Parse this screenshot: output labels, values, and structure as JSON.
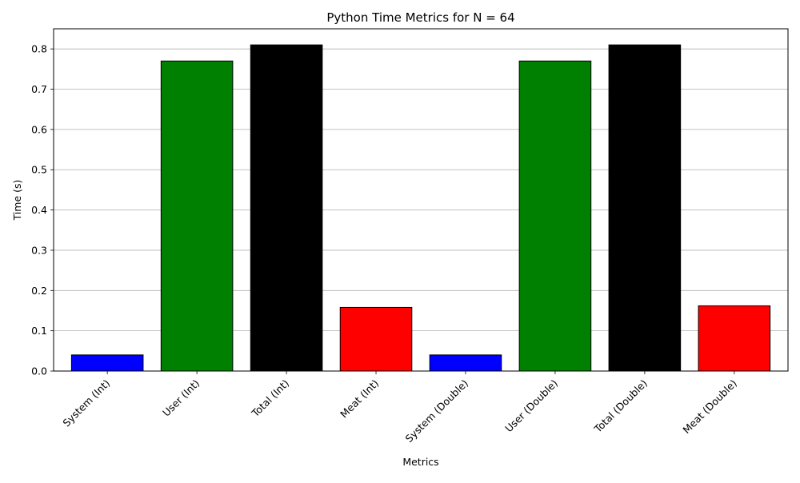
{
  "chart_data": {
    "type": "bar",
    "title": "Python Time Metrics for N = 64",
    "xlabel": "Metrics",
    "ylabel": "Time (s)",
    "categories": [
      "System (Int)",
      "User (Int)",
      "Total (Int)",
      "Meat (Int)",
      "System (Double)",
      "User (Double)",
      "Total (Double)",
      "Meat (Double)"
    ],
    "values": [
      0.04,
      0.77,
      0.81,
      0.158,
      0.04,
      0.77,
      0.81,
      0.162
    ],
    "colors": [
      "#0000ff",
      "#008000",
      "#000000",
      "#ff0000",
      "#0000ff",
      "#008000",
      "#000000",
      "#ff0000"
    ],
    "bar_edge_color": "#000000",
    "ylim": [
      0,
      0.85
    ],
    "yticks": [
      "0.0",
      "0.1",
      "0.2",
      "0.3",
      "0.4",
      "0.5",
      "0.6",
      "0.7",
      "0.8"
    ],
    "grid": "y-axis only",
    "grid_color": "#b0b0b0",
    "xtick_rotation": 45,
    "legend": "none"
  }
}
